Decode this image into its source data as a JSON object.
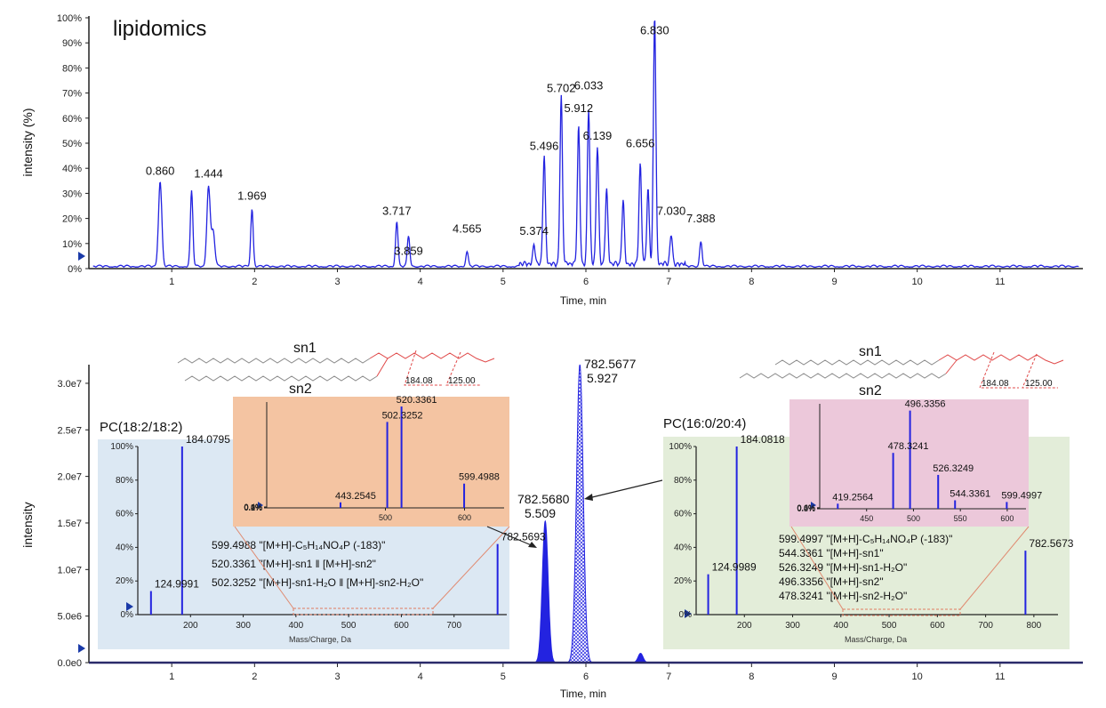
{
  "colors": {
    "trace": "#2323e0",
    "axis": "#222222",
    "blue_panel": "#dce8f3",
    "green_panel": "#e3edd9",
    "orange_panel": "#f4c4a2",
    "pink_panel": "#ecc8da",
    "structure_red": "#e04848",
    "structure_gray": "#8a8a8a"
  },
  "chart_data": [
    {
      "id": "top",
      "type": "line",
      "title": "lipidomics",
      "xlabel": "Time, min",
      "ylabel": "intensity (%)",
      "xlim": [
        0,
        12
      ],
      "ylim": [
        0,
        100
      ],
      "xticks": [
        "1",
        "2",
        "3",
        "4",
        "5",
        "6",
        "7",
        "8",
        "9",
        "10",
        "11"
      ],
      "yticks": [
        "0%",
        "10%",
        "20%",
        "30%",
        "40%",
        "50%",
        "60%",
        "70%",
        "80%",
        "90%",
        "100%"
      ],
      "peaks": [
        {
          "rt": 0.86,
          "h": 34,
          "w": 0.02
        },
        {
          "rt": 1.24,
          "h": 30,
          "w": 0.015
        },
        {
          "rt": 1.444,
          "h": 32,
          "w": 0.02
        },
        {
          "rt": 1.5,
          "h": 14,
          "w": 0.02
        },
        {
          "rt": 1.969,
          "h": 23,
          "w": 0.015
        },
        {
          "rt": 3.717,
          "h": 18,
          "w": 0.015
        },
        {
          "rt": 3.859,
          "h": 12,
          "w": 0.015
        },
        {
          "rt": 4.565,
          "h": 6,
          "w": 0.015
        },
        {
          "rt": 5.374,
          "h": 8,
          "w": 0.015
        },
        {
          "rt": 5.496,
          "h": 43,
          "w": 0.015
        },
        {
          "rt": 5.702,
          "h": 67,
          "w": 0.015
        },
        {
          "rt": 5.912,
          "h": 55,
          "w": 0.015
        },
        {
          "rt": 6.033,
          "h": 62,
          "w": 0.015
        },
        {
          "rt": 6.139,
          "h": 47,
          "w": 0.015
        },
        {
          "rt": 6.25,
          "h": 30,
          "w": 0.015
        },
        {
          "rt": 6.45,
          "h": 25,
          "w": 0.015
        },
        {
          "rt": 6.656,
          "h": 40,
          "w": 0.015
        },
        {
          "rt": 6.75,
          "h": 30,
          "w": 0.015
        },
        {
          "rt": 6.83,
          "h": 100,
          "w": 0.015
        },
        {
          "rt": 7.03,
          "h": 12,
          "w": 0.015
        },
        {
          "rt": 7.388,
          "h": 10,
          "w": 0.015
        }
      ],
      "labels": [
        {
          "rt": 0.86,
          "text": "0.860",
          "pct": 36
        },
        {
          "rt": 1.444,
          "text": "1.444",
          "pct": 35
        },
        {
          "rt": 1.969,
          "text": "1.969",
          "pct": 26
        },
        {
          "rt": 3.717,
          "text": "3.717",
          "pct": 20
        },
        {
          "rt": 3.859,
          "text": "3.859",
          "pct": 4
        },
        {
          "rt": 4.565,
          "text": "4.565",
          "pct": 13
        },
        {
          "rt": 5.374,
          "text": "5.374",
          "pct": 12
        },
        {
          "rt": 5.496,
          "text": "5.496",
          "pct": 46
        },
        {
          "rt": 5.702,
          "text": "5.702",
          "pct": 69
        },
        {
          "rt": 5.912,
          "text": "5.912",
          "pct": 61
        },
        {
          "rt": 6.033,
          "text": "6.033",
          "pct": 70
        },
        {
          "rt": 6.139,
          "text": "6.139",
          "pct": 50
        },
        {
          "rt": 6.656,
          "text": "6.656",
          "pct": 47
        },
        {
          "rt": 6.83,
          "text": "6.830",
          "pct": 92
        },
        {
          "rt": 7.03,
          "text": "7.030",
          "pct": 20
        },
        {
          "rt": 7.388,
          "text": "7.388",
          "pct": 17
        }
      ]
    },
    {
      "id": "xic",
      "type": "line",
      "xlabel": "Time, min",
      "ylabel": "intensity",
      "xlim": [
        0,
        12
      ],
      "ylim": [
        0,
        32000000
      ],
      "xticks": [
        "1",
        "2",
        "3",
        "4",
        "5",
        "6",
        "7",
        "8",
        "9",
        "10",
        "11"
      ],
      "yticks": [
        "0.0e0",
        "5.0e6",
        "1.0e7",
        "1.5e7",
        "2.0e7",
        "2.5e7",
        "3.0e7"
      ],
      "peaks": [
        {
          "rt": 5.509,
          "h": 15200000,
          "w": 0.035,
          "fill": "solid"
        },
        {
          "rt": 5.927,
          "h": 32000000,
          "w": 0.04,
          "fill": "hatch"
        },
        {
          "rt": 6.66,
          "h": 1000000,
          "w": 0.03,
          "fill": "solid"
        }
      ],
      "label_left": {
        "mz": "782.5680",
        "rt": "5.509"
      },
      "label_right": {
        "mz": "782.5677",
        "rt": "5.927"
      }
    },
    {
      "id": "ms_left",
      "type": "bar",
      "title": "PC(18:2/18:2)",
      "xlabel": "Mass/Charge, Da",
      "xlim": [
        100,
        800
      ],
      "ylim": [
        0,
        100
      ],
      "xticks": [
        "200",
        "300",
        "400",
        "500",
        "600",
        "700"
      ],
      "yticks": [
        "0%",
        "20%",
        "40%",
        "60%",
        "80%",
        "100%"
      ],
      "sticks": [
        {
          "mz": 124.9991,
          "h": 14
        },
        {
          "mz": 184.0795,
          "h": 100
        },
        {
          "mz": 782.5693,
          "h": 42
        }
      ],
      "labels": [
        {
          "mz": 124.9991,
          "text": "124.9991"
        },
        {
          "mz": 184.0795,
          "text": "184.0795"
        },
        {
          "mz": 782.5693,
          "text": "782.5693"
        }
      ],
      "annotations": [
        "599.4988 \"[M+H]-C₅H₁₄NO₄P  (-183)\"",
        "520.3361 \"[M+H]-sn1 ‖ [M+H]-sn2\"",
        "502.3252 \"[M+H]-sn1-H₂O ‖ [M+H]-sn2-H₂O\""
      ],
      "zoom_range": [
        400,
        680
      ]
    },
    {
      "id": "ms_left_zoom",
      "type": "bar",
      "xlim": [
        350,
        650
      ],
      "ylim": [
        0,
        0.48
      ],
      "xticks": [
        "500",
        "600"
      ],
      "yticks": [
        "0.0%",
        "0.1%",
        "0.2%",
        "0.3%",
        "0.4%"
      ],
      "sticks": [
        {
          "mz": 443.2545,
          "h": 0.025
        },
        {
          "mz": 502.3252,
          "h": 0.39
        },
        {
          "mz": 520.3361,
          "h": 0.46
        },
        {
          "mz": 599.4988,
          "h": 0.11
        }
      ],
      "labels": [
        {
          "mz": 443.2545,
          "text": "443.2545"
        },
        {
          "mz": 502.3252,
          "text": "502.3252"
        },
        {
          "mz": 520.3361,
          "text": "520.3361"
        },
        {
          "mz": 599.4988,
          "text": "599.4988"
        }
      ]
    },
    {
      "id": "ms_right",
      "type": "bar",
      "title": "PC(16:0/20:4)",
      "xlabel": "Mass/Charge, Da",
      "xlim": [
        100,
        850
      ],
      "ylim": [
        0,
        100
      ],
      "xticks": [
        "200",
        "300",
        "400",
        "500",
        "600",
        "700",
        "800"
      ],
      "yticks": [
        "0%",
        "20%",
        "40%",
        "60%",
        "80%",
        "100%"
      ],
      "sticks": [
        {
          "mz": 124.9989,
          "h": 24
        },
        {
          "mz": 184.0818,
          "h": 100
        },
        {
          "mz": 782.5673,
          "h": 38
        }
      ],
      "labels": [
        {
          "mz": 124.9989,
          "text": "124.9989"
        },
        {
          "mz": 184.0818,
          "text": "184.0818"
        },
        {
          "mz": 782.5673,
          "text": "782.5673"
        }
      ],
      "annotations": [
        "599.4997 \"[M+H]-C₅H₁₄NO₄P  (-183)\"",
        "544.3361 \"[M+H]-sn1\"",
        "526.3249 \"[M+H]-sn1-H₂O\"",
        "496.3356 \"[M+H]-sn2\"",
        "478.3241 \"[M+H]-sn2-H₂O\""
      ],
      "zoom_range": [
        400,
        630
      ]
    },
    {
      "id": "ms_right_zoom",
      "type": "bar",
      "xlim": [
        400,
        620
      ],
      "ylim": [
        0,
        0.62
      ],
      "xticks": [
        "450",
        "500",
        "550",
        "600"
      ],
      "yticks": [
        "0.0%",
        "0.2%",
        "0.4%",
        "0.6%"
      ],
      "sticks": [
        {
          "mz": 419.2564,
          "h": 0.03
        },
        {
          "mz": 478.3241,
          "h": 0.33
        },
        {
          "mz": 496.3356,
          "h": 0.58
        },
        {
          "mz": 526.3249,
          "h": 0.2
        },
        {
          "mz": 544.3361,
          "h": 0.05
        },
        {
          "mz": 599.4997,
          "h": 0.04
        }
      ],
      "labels": [
        {
          "mz": 419.2564,
          "text": "419.2564"
        },
        {
          "mz": 478.3241,
          "text": "478.3241"
        },
        {
          "mz": 496.3356,
          "text": "496.3356"
        },
        {
          "mz": 526.3249,
          "text": "526.3249"
        },
        {
          "mz": 544.3361,
          "text": "544.3361"
        },
        {
          "mz": 599.4997,
          "text": "599.4997"
        }
      ]
    }
  ],
  "structures": {
    "left": {
      "sn1": "sn1",
      "sn2": "sn2",
      "frag1": "184.08",
      "frag2": "125.00"
    },
    "right": {
      "sn1": "sn1",
      "sn2": "sn2",
      "frag1": "184.08",
      "frag2": "125.00"
    }
  }
}
